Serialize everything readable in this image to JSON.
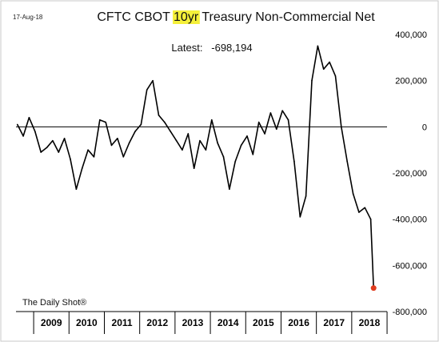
{
  "chart_data": {
    "type": "line",
    "date_stamp": "17-Aug-18",
    "title_parts": {
      "before": "CFTC CBOT ",
      "highlight": "10yr",
      "after": " Treasury Non-Commercial Net"
    },
    "annotation": "Latest:   -698,194",
    "source": "The Daily Shot®",
    "x_tick_labels": [
      "2009",
      "2010",
      "2011",
      "2012",
      "2013",
      "2014",
      "2015",
      "2016",
      "2017",
      "2018"
    ],
    "y_tick_labels": [
      "400,000",
      "200,000",
      "0",
      "-200,000",
      "-400,000",
      "-600,000",
      "-800,000"
    ],
    "y_ticks": [
      400000,
      200000,
      0,
      -200000,
      -400000,
      -600000,
      -800000
    ],
    "ylim": [
      -800000,
      400000
    ],
    "xlim": [
      "2008-07-01",
      "2018-12-31"
    ],
    "grid": false,
    "zero_line": true,
    "line_color": "#000000",
    "latest_marker_color": "#e03c1e",
    "highlight_color": "#f5f03a",
    "x": [
      "2008-07",
      "2008-09",
      "2008-11",
      "2009-01",
      "2009-03",
      "2009-05",
      "2009-07",
      "2009-09",
      "2009-11",
      "2010-01",
      "2010-03",
      "2010-05",
      "2010-07",
      "2010-09",
      "2010-11",
      "2011-01",
      "2011-03",
      "2011-05",
      "2011-07",
      "2011-09",
      "2011-11",
      "2012-01",
      "2012-03",
      "2012-05",
      "2012-07",
      "2012-09",
      "2012-11",
      "2013-01",
      "2013-03",
      "2013-05",
      "2013-07",
      "2013-09",
      "2013-11",
      "2014-01",
      "2014-03",
      "2014-05",
      "2014-07",
      "2014-09",
      "2014-11",
      "2015-01",
      "2015-03",
      "2015-05",
      "2015-07",
      "2015-09",
      "2015-11",
      "2016-01",
      "2016-03",
      "2016-05",
      "2016-07",
      "2016-09",
      "2016-11",
      "2017-01",
      "2017-03",
      "2017-05",
      "2017-07",
      "2017-09",
      "2017-11",
      "2018-01",
      "2018-03",
      "2018-05",
      "2018-07",
      "2018-08-14"
    ],
    "values": [
      10000,
      -40000,
      40000,
      -20000,
      -110000,
      -90000,
      -60000,
      -110000,
      -50000,
      -140000,
      -270000,
      -180000,
      -100000,
      -130000,
      30000,
      20000,
      -80000,
      -50000,
      -130000,
      -70000,
      -20000,
      10000,
      160000,
      200000,
      50000,
      20000,
      -20000,
      -60000,
      -100000,
      -30000,
      -180000,
      -60000,
      -100000,
      30000,
      -70000,
      -130000,
      -270000,
      -150000,
      -80000,
      -40000,
      -120000,
      20000,
      -30000,
      60000,
      -10000,
      70000,
      30000,
      -150000,
      -390000,
      -300000,
      200000,
      350000,
      250000,
      280000,
      220000,
      0,
      -150000,
      -290000,
      -370000,
      -350000,
      -400000,
      -698194
    ]
  }
}
